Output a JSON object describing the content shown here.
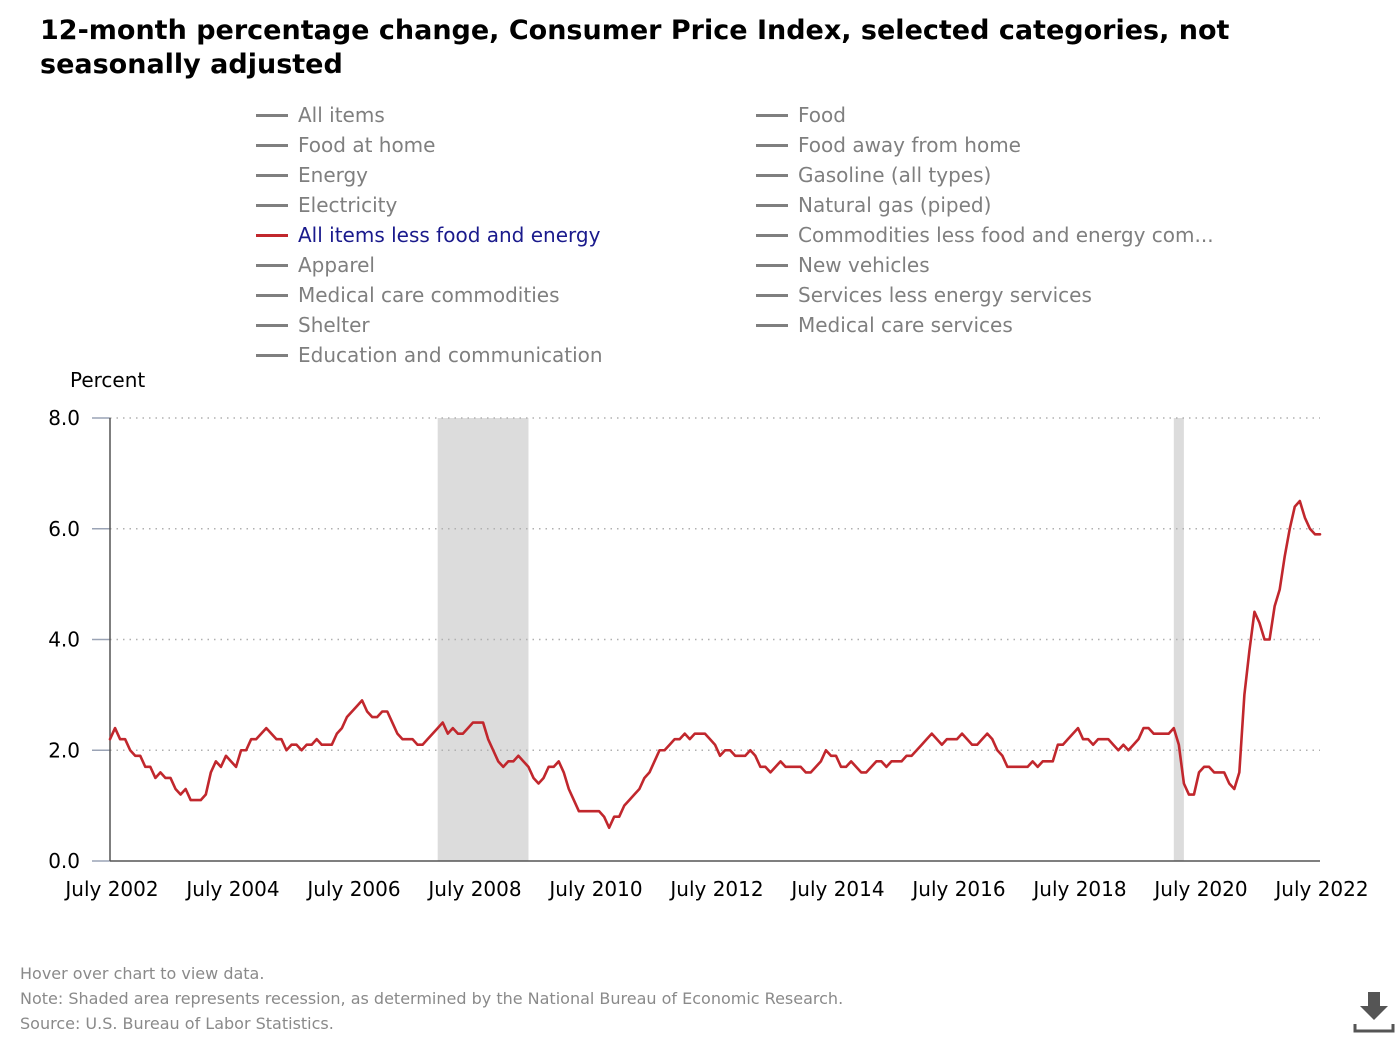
{
  "title": "12-month percentage change, Consumer Price Index, selected categories, not seasonally adjusted",
  "legend": {
    "items": [
      {
        "label": "All items",
        "active": false
      },
      {
        "label": "Food",
        "active": false
      },
      {
        "label": "Food at home",
        "active": false
      },
      {
        "label": "Food away from home",
        "active": false
      },
      {
        "label": "Energy",
        "active": false
      },
      {
        "label": "Gasoline (all types)",
        "active": false
      },
      {
        "label": "Electricity",
        "active": false
      },
      {
        "label": "Natural gas (piped)",
        "active": false
      },
      {
        "label": "All items less food and energy",
        "active": true
      },
      {
        "label": "Commodities less food and energy com...",
        "active": false
      },
      {
        "label": "Apparel",
        "active": false
      },
      {
        "label": "New vehicles",
        "active": false
      },
      {
        "label": "Medical care commodities",
        "active": false
      },
      {
        "label": "Services less energy services",
        "active": false
      },
      {
        "label": "Shelter",
        "active": false
      },
      {
        "label": "Medical care services",
        "active": false
      },
      {
        "label": "Education and communication",
        "active": false
      }
    ]
  },
  "colors": {
    "series": "#c1272d",
    "inactive_legend": "#7f7f7f",
    "active_legend_text": "#1a1a8c",
    "recession": "#dcdcdc",
    "grid": "#b0b0b0",
    "axis": "#555555"
  },
  "chart_data": {
    "type": "line",
    "ylabel": "Percent",
    "ylim": [
      0,
      8
    ],
    "yticks": [
      "0.0",
      "2.0",
      "4.0",
      "6.0",
      "8.0"
    ],
    "xlim": [
      "2002-07",
      "2022-07"
    ],
    "xticks": [
      "July 2002",
      "July 2004",
      "July 2006",
      "July 2008",
      "July 2010",
      "July 2012",
      "July 2014",
      "July 2016",
      "July 2018",
      "July 2020",
      "July 2022"
    ],
    "grid": "horizontal dotted",
    "recessions": [
      {
        "start": "2007-12",
        "end": "2009-06"
      },
      {
        "start": "2020-02",
        "end": "2020-04"
      }
    ],
    "series": [
      {
        "name": "All items less food and energy",
        "start": "2002-07",
        "frequency": "monthly",
        "values": [
          2.2,
          2.4,
          2.2,
          2.2,
          2.0,
          1.9,
          1.9,
          1.7,
          1.7,
          1.5,
          1.6,
          1.5,
          1.5,
          1.3,
          1.2,
          1.3,
          1.1,
          1.1,
          1.1,
          1.2,
          1.6,
          1.8,
          1.7,
          1.9,
          1.8,
          1.7,
          2.0,
          2.0,
          2.2,
          2.2,
          2.3,
          2.4,
          2.3,
          2.2,
          2.2,
          2.0,
          2.1,
          2.1,
          2.0,
          2.1,
          2.1,
          2.2,
          2.1,
          2.1,
          2.1,
          2.3,
          2.4,
          2.6,
          2.7,
          2.8,
          2.9,
          2.7,
          2.6,
          2.6,
          2.7,
          2.7,
          2.5,
          2.3,
          2.2,
          2.2,
          2.2,
          2.1,
          2.1,
          2.2,
          2.3,
          2.4,
          2.5,
          2.3,
          2.4,
          2.3,
          2.3,
          2.4,
          2.5,
          2.5,
          2.5,
          2.2,
          2.0,
          1.8,
          1.7,
          1.8,
          1.8,
          1.9,
          1.8,
          1.7,
          1.5,
          1.4,
          1.5,
          1.7,
          1.7,
          1.8,
          1.6,
          1.3,
          1.1,
          0.9,
          0.9,
          0.9,
          0.9,
          0.9,
          0.8,
          0.6,
          0.8,
          0.8,
          1.0,
          1.1,
          1.2,
          1.3,
          1.5,
          1.6,
          1.8,
          2.0,
          2.0,
          2.1,
          2.2,
          2.2,
          2.3,
          2.2,
          2.3,
          2.3,
          2.3,
          2.2,
          2.1,
          1.9,
          2.0,
          2.0,
          1.9,
          1.9,
          1.9,
          2.0,
          1.9,
          1.7,
          1.7,
          1.6,
          1.7,
          1.8,
          1.7,
          1.7,
          1.7,
          1.7,
          1.6,
          1.6,
          1.7,
          1.8,
          2.0,
          1.9,
          1.9,
          1.7,
          1.7,
          1.8,
          1.7,
          1.6,
          1.6,
          1.7,
          1.8,
          1.8,
          1.7,
          1.8,
          1.8,
          1.8,
          1.9,
          1.9,
          2.0,
          2.1,
          2.2,
          2.3,
          2.2,
          2.1,
          2.2,
          2.2,
          2.2,
          2.3,
          2.2,
          2.1,
          2.1,
          2.2,
          2.3,
          2.2,
          2.0,
          1.9,
          1.7,
          1.7,
          1.7,
          1.7,
          1.7,
          1.8,
          1.7,
          1.8,
          1.8,
          1.8,
          2.1,
          2.1,
          2.2,
          2.3,
          2.4,
          2.2,
          2.2,
          2.1,
          2.2,
          2.2,
          2.2,
          2.1,
          2.0,
          2.1,
          2.0,
          2.1,
          2.2,
          2.4,
          2.4,
          2.3,
          2.3,
          2.3,
          2.3,
          2.4,
          2.1,
          1.4,
          1.2,
          1.2,
          1.6,
          1.7,
          1.7,
          1.6,
          1.6,
          1.6,
          1.4,
          1.3,
          1.6,
          3.0,
          3.8,
          4.5,
          4.3,
          4.0,
          4.0,
          4.6,
          4.9,
          5.5,
          6.0,
          6.4,
          6.5,
          6.2,
          6.0,
          5.9,
          5.9
        ]
      }
    ]
  },
  "notes": {
    "hover": "Hover over chart to view data.",
    "recession_note": "Note: Shaded area represents recession, as determined by the National Bureau of Economic Research.",
    "source": "Source: U.S. Bureau of Labor Statistics."
  },
  "download_icon": "download-icon"
}
